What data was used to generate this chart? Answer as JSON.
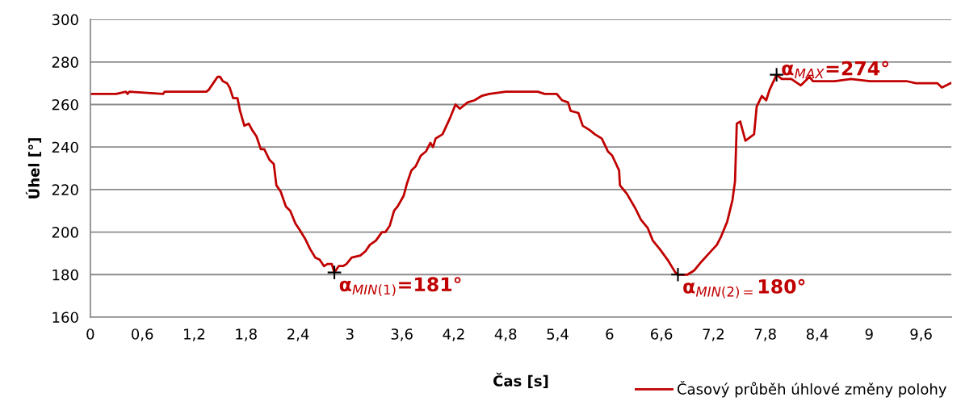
{
  "chart_data": {
    "type": "line",
    "xlabel": "Čas [s]",
    "ylabel": "Úhel [°]",
    "xlim": [
      0,
      9.95
    ],
    "ylim": [
      160,
      300
    ],
    "xticks": [
      0,
      {
        "value": 0.6,
        "label": "0,6"
      },
      {
        "value": 1.2,
        "label": "1,2"
      },
      {
        "value": 1.8,
        "label": "1,8"
      },
      {
        "value": 2.4,
        "label": "2,4"
      },
      3,
      {
        "value": 3.6,
        "label": "3,6"
      },
      {
        "value": 4.2,
        "label": "4,2"
      },
      {
        "value": 4.8,
        "label": "4,8"
      },
      {
        "value": 5.4,
        "label": "5,4"
      },
      6,
      {
        "value": 6.6,
        "label": "6,6"
      },
      {
        "value": 7.2,
        "label": "7,2"
      },
      {
        "value": 7.8,
        "label": "7,8"
      },
      {
        "value": 8.4,
        "label": "8,4"
      },
      9,
      {
        "value": 9.6,
        "label": "9,6"
      }
    ],
    "yticks": [
      160,
      180,
      200,
      220,
      240,
      260,
      280,
      300
    ],
    "grid": "y",
    "legend": "bottom right",
    "marker": "none",
    "line_style": "solid",
    "series": [
      {
        "name": "Časový průběh úhlové změny polohy",
        "color": "#c00000",
        "x": [
          0,
          0.3,
          0.41,
          0.43,
          0.45,
          0.84,
          0.86,
          1.34,
          1.37,
          1.42,
          1.47,
          1.5,
          1.53,
          1.58,
          1.61,
          1.65,
          1.7,
          1.73,
          1.78,
          1.83,
          1.87,
          1.92,
          1.97,
          2.01,
          2.07,
          2.12,
          2.15,
          2.2,
          2.26,
          2.31,
          2.37,
          2.42,
          2.48,
          2.54,
          2.6,
          2.65,
          2.7,
          2.74,
          2.79,
          2.82,
          2.87,
          2.92,
          2.96,
          3.02,
          3.12,
          3.18,
          3.23,
          3.3,
          3.37,
          3.41,
          3.46,
          3.51,
          3.55,
          3.62,
          3.66,
          3.71,
          3.76,
          3.82,
          3.88,
          3.93,
          3.96,
          3.99,
          4.07,
          4.16,
          4.22,
          4.27,
          4.36,
          4.44,
          4.52,
          4.61,
          4.8,
          4.96,
          5.17,
          5.25,
          5.39,
          5.45,
          5.52,
          5.55,
          5.64,
          5.69,
          5.77,
          5.83,
          5.91,
          5.98,
          6.03,
          6.11,
          6.12,
          6.2,
          6.3,
          6.36,
          6.44,
          6.5,
          6.58,
          6.67,
          6.76,
          6.79,
          6.9,
          6.98,
          7.06,
          7.15,
          7.24,
          7.29,
          7.36,
          7.42,
          7.45,
          7.47,
          7.51,
          7.57,
          7.67,
          7.7,
          7.76,
          7.81,
          7.85,
          7.93,
          7.99,
          8.1,
          8.21,
          8.31,
          8.35,
          8.6,
          8.79,
          9.01,
          9.22,
          9.43,
          9.54,
          9.79,
          9.84,
          9.94
        ],
        "values": [
          265,
          265,
          266,
          265,
          266,
          265,
          266,
          266,
          267,
          270,
          273,
          273,
          271,
          270,
          268,
          263,
          263,
          257,
          250,
          251,
          248,
          245,
          239,
          239,
          234,
          232,
          222,
          219,
          212,
          210,
          204,
          201,
          197,
          192,
          188,
          187,
          184,
          185,
          185,
          181,
          184,
          184,
          185,
          188,
          189,
          191,
          194,
          196,
          200,
          200,
          203,
          210,
          212,
          217,
          223,
          229,
          231,
          236,
          238,
          242,
          240,
          244,
          246,
          254,
          260,
          258,
          261,
          262,
          264,
          265,
          266,
          266,
          266,
          265,
          265,
          262,
          261,
          257,
          256,
          250,
          248,
          246,
          244,
          238,
          236,
          229,
          222,
          218,
          211,
          206,
          202,
          196,
          192,
          187,
          181,
          180,
          180,
          182,
          186,
          190,
          194,
          198,
          205,
          215,
          224,
          251,
          252,
          243,
          246,
          259,
          264,
          262,
          267,
          274,
          272,
          272,
          269,
          273,
          271,
          271,
          272,
          271,
          271,
          271,
          270,
          270,
          268,
          270
        ]
      }
    ],
    "annotations": [
      {
        "text": "α$_{MIN(1)}$=181°",
        "x": 2.82,
        "y": 181
      },
      {
        "text": "α$_{MIN(2)=}$180°",
        "x": 6.79,
        "y": 180
      },
      {
        "text": "α$_{MAX}$=274°",
        "x": 7.93,
        "y": 274
      }
    ]
  }
}
